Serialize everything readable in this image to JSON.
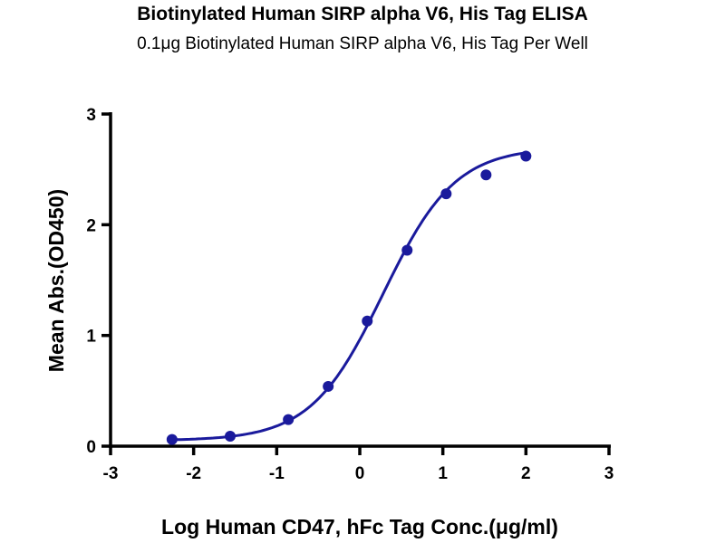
{
  "chart_data": {
    "type": "scatter",
    "title": "Biotinylated Human SIRP alpha V6, His Tag ELISA",
    "subtitle": "0.1μg Biotinylated Human SIRP alpha V6, His Tag Per Well",
    "xlabel": "Log Human CD47, hFc Tag Conc.(μg/ml)",
    "ylabel": "Mean Abs.(OD450)",
    "xlim": [
      -3,
      3
    ],
    "ylim": [
      0,
      3
    ],
    "xticks": [
      "-3",
      "-2",
      "-1",
      "0",
      "1",
      "2",
      "3"
    ],
    "yticks": [
      "0",
      "1",
      "2",
      "3"
    ],
    "grid": false,
    "color": "#1a1a9c",
    "x": [
      -2.26,
      -1.56,
      -0.86,
      -0.38,
      0.09,
      0.57,
      1.04,
      1.52,
      2.0
    ],
    "y": [
      0.06,
      0.09,
      0.24,
      0.54,
      1.13,
      1.77,
      2.28,
      2.45,
      2.62
    ],
    "fit": {
      "model": "4PL",
      "bottom": 0.05,
      "top": 2.7,
      "logEC50": 0.28,
      "hill": 1.0,
      "xrange": [
        -2.26,
        2.0
      ]
    }
  }
}
